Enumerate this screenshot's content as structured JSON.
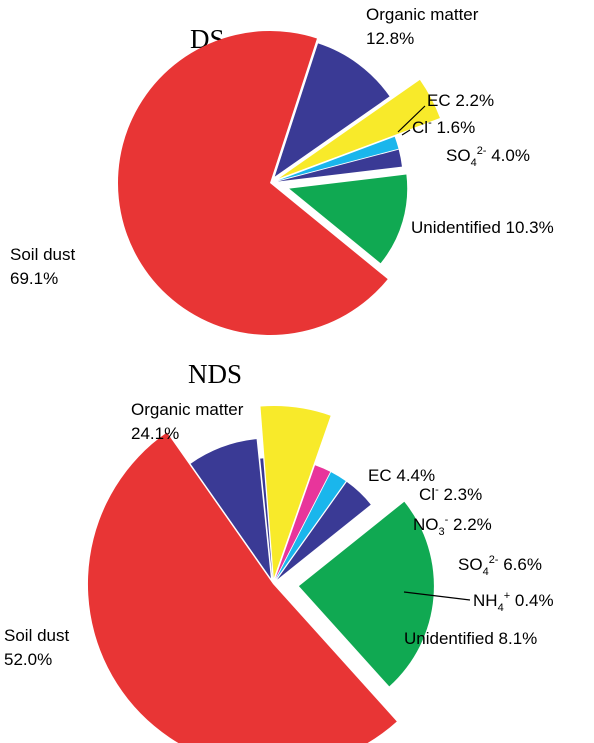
{
  "chart_data": [
    {
      "type": "pie",
      "title": "DS",
      "slices": [
        {
          "label": "Soil dust",
          "value": 69.1,
          "value_text": "69.1%",
          "color": "#e83535"
        },
        {
          "label": "Organic matter",
          "value": 12.8,
          "value_text": "12.8%",
          "color": "#10a952"
        },
        {
          "label": "EC",
          "value": 2.2,
          "value_text": "2.2%",
          "color": "#3a3a95"
        },
        {
          "label": "Cl",
          "sup": "-",
          "value": 1.6,
          "value_text": "1.6%",
          "color": "#1ab6ec"
        },
        {
          "label": "SO",
          "sub": "4",
          "sup": "2-",
          "value": 4.0,
          "value_text": "4.0%",
          "color": "#f8ea2a"
        },
        {
          "label": "Unidentified",
          "value": 10.3,
          "value_text": "10.3%",
          "color": "#3a3a95"
        }
      ]
    },
    {
      "type": "pie",
      "title": "NDS",
      "slices": [
        {
          "label": "Soil dust",
          "value": 52.0,
          "value_text": "52.0%",
          "color": "#e83535"
        },
        {
          "label": "Organic matter",
          "value": 24.1,
          "value_text": "24.1%",
          "color": "#10a952"
        },
        {
          "label": "EC",
          "value": 4.4,
          "value_text": "4.4%",
          "color": "#3a3a95"
        },
        {
          "label": "Cl",
          "sup": "-",
          "value": 2.3,
          "value_text": "2.3%",
          "color": "#1ab6ec"
        },
        {
          "label": "NO",
          "sub": "3",
          "sup": "-",
          "value": 2.2,
          "value_text": "2.2%",
          "color": "#e8359b"
        },
        {
          "label": "SO",
          "sub": "4",
          "sup": "2-",
          "value": 6.6,
          "value_text": "6.6%",
          "color": "#f8ea2a"
        },
        {
          "label": "NH",
          "sub": "4",
          "sup": "+",
          "value": 0.4,
          "value_text": "0.4%",
          "color": "#3a3a95"
        },
        {
          "label": "Unidentified",
          "value": 8.1,
          "value_text": "8.1%",
          "color": "#3a3a95"
        }
      ]
    }
  ]
}
